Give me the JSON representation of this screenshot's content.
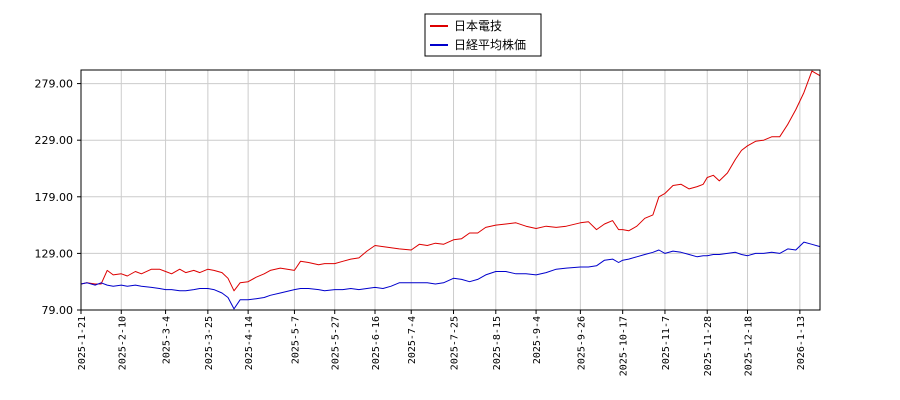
{
  "chart_data": {
    "type": "line",
    "title": "",
    "xlabel": "",
    "ylabel": "",
    "ylim": [
      79,
      291
    ],
    "xlim": [
      "2025-01-21",
      "2026-01-23"
    ],
    "grid": true,
    "legend_position": "top-center",
    "y_ticks": [
      "79.00",
      "129.00",
      "179.00",
      "229.00",
      "279.00"
    ],
    "x_ticks": [
      "2025-1-21",
      "2025-2-10",
      "2025-3-4",
      "2025-3-25",
      "2025-4-14",
      "2025-5-7",
      "2025-5-27",
      "2025-6-16",
      "2025-7-4",
      "2025-7-25",
      "2025-8-15",
      "2025-9-4",
      "2025-9-26",
      "2025-10-17",
      "2025-11-7",
      "2025-11-28",
      "2025-12-18",
      "2026-1-13"
    ],
    "series": [
      {
        "name": "日本電技",
        "color": "#dd0000",
        "points": [
          [
            "2025-01-21",
            102
          ],
          [
            "2025-01-24",
            103
          ],
          [
            "2025-01-28",
            102
          ],
          [
            "2025-01-31",
            102
          ],
          [
            "2025-02-03",
            114
          ],
          [
            "2025-02-06",
            110
          ],
          [
            "2025-02-10",
            111
          ],
          [
            "2025-02-13",
            109
          ],
          [
            "2025-02-17",
            113
          ],
          [
            "2025-02-20",
            111
          ],
          [
            "2025-02-25",
            115
          ],
          [
            "2025-03-01",
            115
          ],
          [
            "2025-03-04",
            113
          ],
          [
            "2025-03-07",
            111
          ],
          [
            "2025-03-11",
            115
          ],
          [
            "2025-03-14",
            112
          ],
          [
            "2025-03-18",
            114
          ],
          [
            "2025-03-21",
            112
          ],
          [
            "2025-03-25",
            115
          ],
          [
            "2025-03-28",
            114
          ],
          [
            "2025-04-01",
            112
          ],
          [
            "2025-04-04",
            107
          ],
          [
            "2025-04-07",
            96
          ],
          [
            "2025-04-10",
            103
          ],
          [
            "2025-04-14",
            104
          ],
          [
            "2025-04-18",
            108
          ],
          [
            "2025-04-22",
            111
          ],
          [
            "2025-04-25",
            114
          ],
          [
            "2025-04-30",
            116
          ],
          [
            "2025-05-07",
            114
          ],
          [
            "2025-05-10",
            122
          ],
          [
            "2025-05-14",
            121
          ],
          [
            "2025-05-19",
            119
          ],
          [
            "2025-05-22",
            120
          ],
          [
            "2025-05-27",
            120
          ],
          [
            "2025-05-31",
            122
          ],
          [
            "2025-06-04",
            124
          ],
          [
            "2025-06-08",
            125
          ],
          [
            "2025-06-12",
            131
          ],
          [
            "2025-06-16",
            136
          ],
          [
            "2025-06-20",
            135
          ],
          [
            "2025-06-24",
            134
          ],
          [
            "2025-06-28",
            133
          ],
          [
            "2025-07-04",
            132
          ],
          [
            "2025-07-08",
            137
          ],
          [
            "2025-07-12",
            136
          ],
          [
            "2025-07-16",
            138
          ],
          [
            "2025-07-20",
            137
          ],
          [
            "2025-07-25",
            141
          ],
          [
            "2025-07-29",
            142
          ],
          [
            "2025-08-02",
            147
          ],
          [
            "2025-08-06",
            147
          ],
          [
            "2025-08-10",
            152
          ],
          [
            "2025-08-15",
            154
          ],
          [
            "2025-08-20",
            155
          ],
          [
            "2025-08-25",
            156
          ],
          [
            "2025-08-30",
            153
          ],
          [
            "2025-09-04",
            151
          ],
          [
            "2025-09-09",
            153
          ],
          [
            "2025-09-14",
            152
          ],
          [
            "2025-09-19",
            153
          ],
          [
            "2025-09-26",
            156
          ],
          [
            "2025-09-30",
            157
          ],
          [
            "2025-10-04",
            150
          ],
          [
            "2025-10-08",
            155
          ],
          [
            "2025-10-12",
            158
          ],
          [
            "2025-10-15",
            150
          ],
          [
            "2025-10-17",
            150
          ],
          [
            "2025-10-20",
            149
          ],
          [
            "2025-10-24",
            153
          ],
          [
            "2025-10-28",
            160
          ],
          [
            "2025-11-01",
            163
          ],
          [
            "2025-11-04",
            179
          ],
          [
            "2025-11-07",
            182
          ],
          [
            "2025-11-11",
            189
          ],
          [
            "2025-11-15",
            190
          ],
          [
            "2025-11-19",
            186
          ],
          [
            "2025-11-23",
            188
          ],
          [
            "2025-11-26",
            190
          ],
          [
            "2025-11-28",
            196
          ],
          [
            "2025-12-01",
            198
          ],
          [
            "2025-12-04",
            193
          ],
          [
            "2025-12-08",
            200
          ],
          [
            "2025-12-12",
            212
          ],
          [
            "2025-12-15",
            220
          ],
          [
            "2025-12-18",
            224
          ],
          [
            "2025-12-22",
            228
          ],
          [
            "2025-12-26",
            229
          ],
          [
            "2025-12-30",
            232
          ],
          [
            "2026-01-03",
            232
          ],
          [
            "2026-01-07",
            243
          ],
          [
            "2026-01-11",
            256
          ],
          [
            "2026-01-15",
            271
          ],
          [
            "2026-01-19",
            290
          ],
          [
            "2026-01-23",
            286
          ]
        ]
      },
      {
        "name": "日経平均株価",
        "color": "#0000cc",
        "points": [
          [
            "2025-01-21",
            102
          ],
          [
            "2025-01-24",
            103
          ],
          [
            "2025-01-28",
            101
          ],
          [
            "2025-01-31",
            103
          ],
          [
            "2025-02-03",
            101
          ],
          [
            "2025-02-06",
            100
          ],
          [
            "2025-02-10",
            101
          ],
          [
            "2025-02-13",
            100
          ],
          [
            "2025-02-17",
            101
          ],
          [
            "2025-02-20",
            100
          ],
          [
            "2025-02-25",
            99
          ],
          [
            "2025-03-01",
            98
          ],
          [
            "2025-03-04",
            97
          ],
          [
            "2025-03-07",
            97
          ],
          [
            "2025-03-11",
            96
          ],
          [
            "2025-03-14",
            96
          ],
          [
            "2025-03-18",
            97
          ],
          [
            "2025-03-21",
            98
          ],
          [
            "2025-03-25",
            98
          ],
          [
            "2025-03-28",
            97
          ],
          [
            "2025-04-01",
            94
          ],
          [
            "2025-04-04",
            90
          ],
          [
            "2025-04-07",
            80
          ],
          [
            "2025-04-10",
            88
          ],
          [
            "2025-04-14",
            88
          ],
          [
            "2025-04-18",
            89
          ],
          [
            "2025-04-22",
            90
          ],
          [
            "2025-04-25",
            92
          ],
          [
            "2025-04-30",
            94
          ],
          [
            "2025-05-07",
            97
          ],
          [
            "2025-05-10",
            98
          ],
          [
            "2025-05-14",
            98
          ],
          [
            "2025-05-19",
            97
          ],
          [
            "2025-05-22",
            96
          ],
          [
            "2025-05-27",
            97
          ],
          [
            "2025-05-31",
            97
          ],
          [
            "2025-06-04",
            98
          ],
          [
            "2025-06-08",
            97
          ],
          [
            "2025-06-12",
            98
          ],
          [
            "2025-06-16",
            99
          ],
          [
            "2025-06-20",
            98
          ],
          [
            "2025-06-24",
            100
          ],
          [
            "2025-06-28",
            103
          ],
          [
            "2025-07-04",
            103
          ],
          [
            "2025-07-08",
            103
          ],
          [
            "2025-07-12",
            103
          ],
          [
            "2025-07-16",
            102
          ],
          [
            "2025-07-20",
            103
          ],
          [
            "2025-07-25",
            107
          ],
          [
            "2025-07-29",
            106
          ],
          [
            "2025-08-02",
            104
          ],
          [
            "2025-08-06",
            106
          ],
          [
            "2025-08-10",
            110
          ],
          [
            "2025-08-15",
            113
          ],
          [
            "2025-08-20",
            113
          ],
          [
            "2025-08-25",
            111
          ],
          [
            "2025-08-30",
            111
          ],
          [
            "2025-09-04",
            110
          ],
          [
            "2025-09-09",
            112
          ],
          [
            "2025-09-14",
            115
          ],
          [
            "2025-09-19",
            116
          ],
          [
            "2025-09-26",
            117
          ],
          [
            "2025-09-30",
            117
          ],
          [
            "2025-10-04",
            118
          ],
          [
            "2025-10-08",
            123
          ],
          [
            "2025-10-12",
            124
          ],
          [
            "2025-10-15",
            121
          ],
          [
            "2025-10-17",
            123
          ],
          [
            "2025-10-20",
            124
          ],
          [
            "2025-10-24",
            126
          ],
          [
            "2025-10-28",
            128
          ],
          [
            "2025-11-01",
            130
          ],
          [
            "2025-11-04",
            132
          ],
          [
            "2025-11-07",
            129
          ],
          [
            "2025-11-11",
            131
          ],
          [
            "2025-11-15",
            130
          ],
          [
            "2025-11-19",
            128
          ],
          [
            "2025-11-23",
            126
          ],
          [
            "2025-11-26",
            127
          ],
          [
            "2025-11-28",
            127
          ],
          [
            "2025-12-01",
            128
          ],
          [
            "2025-12-04",
            128
          ],
          [
            "2025-12-08",
            129
          ],
          [
            "2025-12-12",
            130
          ],
          [
            "2025-12-15",
            128
          ],
          [
            "2025-12-18",
            127
          ],
          [
            "2025-12-22",
            129
          ],
          [
            "2025-12-26",
            129
          ],
          [
            "2025-12-30",
            130
          ],
          [
            "2026-01-03",
            129
          ],
          [
            "2026-01-07",
            133
          ],
          [
            "2026-01-11",
            132
          ],
          [
            "2026-01-15",
            139
          ],
          [
            "2026-01-19",
            137
          ],
          [
            "2026-01-23",
            135
          ]
        ]
      }
    ]
  }
}
